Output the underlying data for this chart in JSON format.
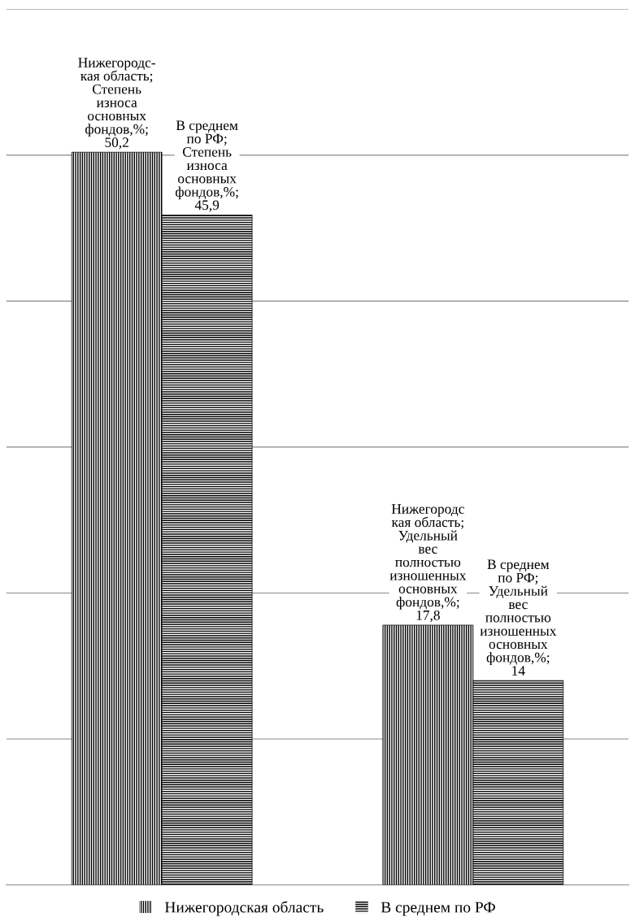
{
  "chart_data": {
    "type": "bar",
    "categories": [
      null,
      null
    ],
    "series": [
      {
        "name": "Нижегородская область",
        "color": "#000000",
        "values": [
          50.2,
          17.8
        ],
        "value_labels": [
          "Нижегородс-\nкая область;\nСтепень\nизноса\nосновных\nфондов,%;\n50,2",
          "Нижегородс\nкая область;\nУдельный\nвес\nполностью\nизношенных\nосновных\nфондов,%;\n17,8"
        ]
      },
      {
        "name": "В среднем по РФ",
        "color": "#000000",
        "values": [
          45.9,
          14
        ],
        "value_labels": [
          "В среднем\nпо РФ;\nСтепень\nизноса\nосновных\nфондов,%;\n45,9",
          "В среднем\nпо РФ;\nУдельный\nвес\nполностью\nизношенных\nосновных\nфондов,%;\n14"
        ]
      }
    ],
    "ylim": [
      0,
      60
    ],
    "yticks": [
      {
        "value": 0,
        "label": null
      },
      {
        "value": 10,
        "label": null
      },
      {
        "value": 20,
        "label": null
      },
      {
        "value": 30,
        "label": null
      },
      {
        "value": 40,
        "label": null
      },
      {
        "value": 50,
        "label": null
      },
      {
        "value": 60,
        "label": null
      }
    ],
    "grid": "y",
    "legend": "bottom",
    "tick_labels": false
  }
}
